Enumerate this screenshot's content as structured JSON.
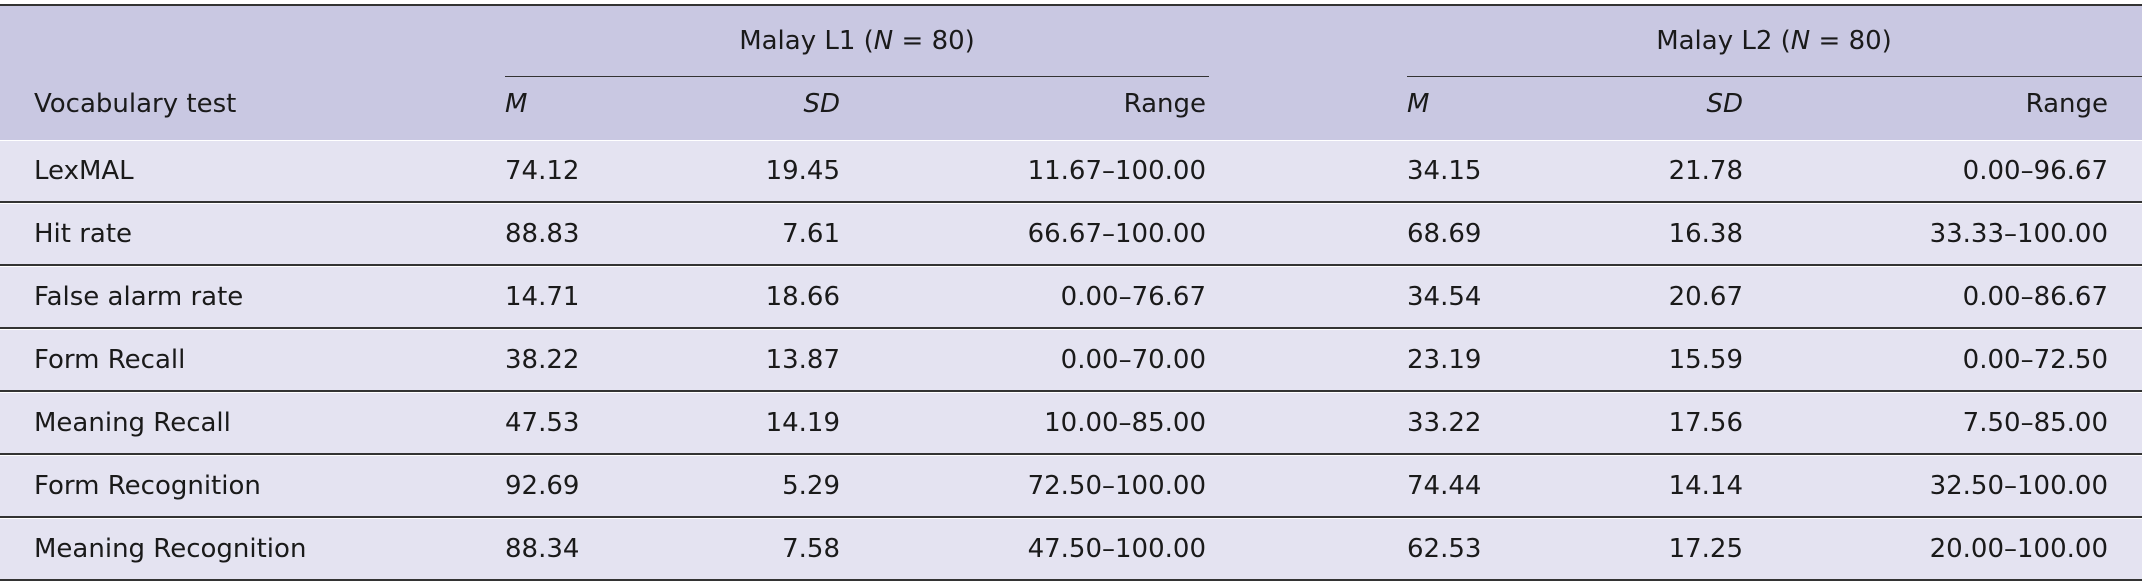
{
  "table": {
    "groups": [
      [
        "Malay L1 (",
        "N",
        " = 80)"
      ],
      [
        "Malay L2 (",
        "N",
        " = 80)"
      ]
    ],
    "columns": [
      "Vocabulary test",
      "M",
      "SD",
      "Range",
      "M",
      "SD",
      "Range"
    ],
    "rows": [
      [
        "LexMAL",
        "74.12",
        "19.45",
        "11.67–100.00",
        "34.15",
        "21.78",
        "0.00–96.67"
      ],
      [
        "Hit rate",
        "88.83",
        "7.61",
        "66.67–100.00",
        "68.69",
        "16.38",
        "33.33–100.00"
      ],
      [
        "False alarm rate",
        "14.71",
        "18.66",
        "0.00–76.67",
        "34.54",
        "20.67",
        "0.00–86.67"
      ],
      [
        "Form Recall",
        "38.22",
        "13.87",
        "0.00–70.00",
        "23.19",
        "15.59",
        "0.00–72.50"
      ],
      [
        "Meaning Recall",
        "47.53",
        "14.19",
        "10.00–85.00",
        "33.22",
        "17.56",
        "7.50–85.00"
      ],
      [
        "Form Recognition",
        "92.69",
        "5.29",
        "72.50–100.00",
        "74.44",
        "14.14",
        "32.50–100.00"
      ],
      [
        "Meaning Recognition",
        "88.34",
        "7.58",
        "47.50–100.00",
        "62.53",
        "17.25",
        "20.00–100.00"
      ]
    ]
  }
}
